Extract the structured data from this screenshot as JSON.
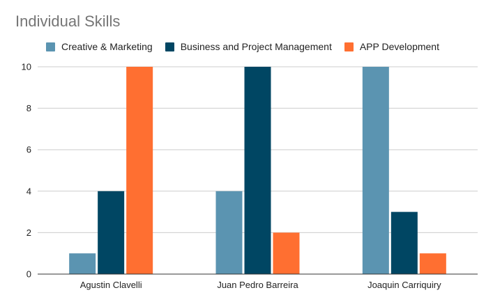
{
  "chart_data": {
    "type": "bar",
    "title": "Individual Skills",
    "xlabel": "",
    "ylabel": "",
    "categories": [
      "Agustin Clavelli",
      "Juan Pedro Barreira",
      "Joaquin Carriquiry"
    ],
    "series": [
      {
        "name": "Creative & Marketing",
        "values": [
          1,
          4,
          10
        ],
        "color": "#5b94b1"
      },
      {
        "name": "Business and Project Management",
        "values": [
          4,
          10,
          3
        ],
        "color": "#004663"
      },
      {
        "name": "APP Development",
        "values": [
          10,
          2,
          1
        ],
        "color": "#ff6f31"
      }
    ],
    "ylim": [
      0,
      10
    ],
    "yticks": [
      "0",
      "2",
      "4",
      "6",
      "8",
      "10"
    ],
    "grid": true,
    "legend_position": "top-left"
  }
}
